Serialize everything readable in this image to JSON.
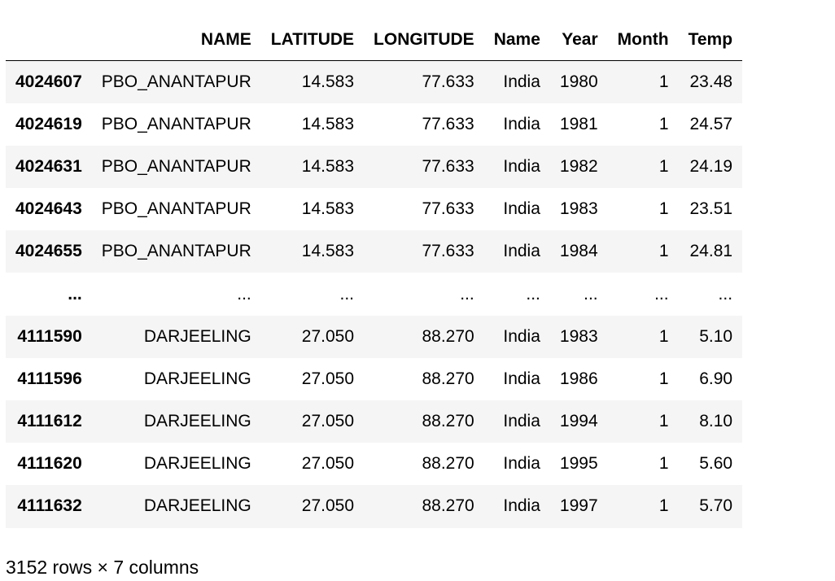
{
  "dataframe": {
    "columns": [
      "NAME",
      "LATITUDE",
      "LONGITUDE",
      "Name",
      "Year",
      "Month",
      "Temp"
    ],
    "rows": [
      {
        "index": "4024607",
        "cells": [
          "PBO_ANANTAPUR",
          "14.583",
          "77.633",
          "India",
          "1980",
          "1",
          "23.48"
        ]
      },
      {
        "index": "4024619",
        "cells": [
          "PBO_ANANTAPUR",
          "14.583",
          "77.633",
          "India",
          "1981",
          "1",
          "24.57"
        ]
      },
      {
        "index": "4024631",
        "cells": [
          "PBO_ANANTAPUR",
          "14.583",
          "77.633",
          "India",
          "1982",
          "1",
          "24.19"
        ]
      },
      {
        "index": "4024643",
        "cells": [
          "PBO_ANANTAPUR",
          "14.583",
          "77.633",
          "India",
          "1983",
          "1",
          "23.51"
        ]
      },
      {
        "index": "4024655",
        "cells": [
          "PBO_ANANTAPUR",
          "14.583",
          "77.633",
          "India",
          "1984",
          "1",
          "24.81"
        ]
      },
      {
        "index": "...",
        "cells": [
          "...",
          "...",
          "...",
          "...",
          "...",
          "...",
          "..."
        ]
      },
      {
        "index": "4111590",
        "cells": [
          "DARJEELING",
          "27.050",
          "88.270",
          "India",
          "1983",
          "1",
          "5.10"
        ]
      },
      {
        "index": "4111596",
        "cells": [
          "DARJEELING",
          "27.050",
          "88.270",
          "India",
          "1986",
          "1",
          "6.90"
        ]
      },
      {
        "index": "4111612",
        "cells": [
          "DARJEELING",
          "27.050",
          "88.270",
          "India",
          "1994",
          "1",
          "8.10"
        ]
      },
      {
        "index": "4111620",
        "cells": [
          "DARJEELING",
          "27.050",
          "88.270",
          "India",
          "1995",
          "1",
          "5.60"
        ]
      },
      {
        "index": "4111632",
        "cells": [
          "DARJEELING",
          "27.050",
          "88.270",
          "India",
          "1997",
          "1",
          "5.70"
        ]
      }
    ],
    "shape_text": "3152 rows × 7 columns"
  },
  "colors": {
    "stripe": "#f5f5f5",
    "text": "#000000",
    "background": "#ffffff"
  }
}
